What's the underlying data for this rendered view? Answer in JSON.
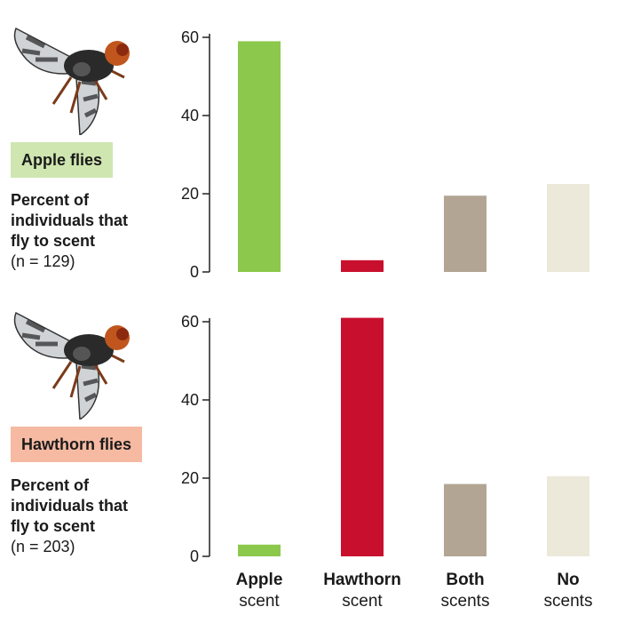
{
  "colors": {
    "apple": "#8cc84b",
    "hawthorn": "#c8102e",
    "both": "#b2a593",
    "none": "#ece8da",
    "apple_badge": "#cfe6b0",
    "hawthorn_badge": "#f6b9a2"
  },
  "categories": [
    {
      "line1": "Apple",
      "line2": "scent"
    },
    {
      "line1": "Hawthorn",
      "line2": "scent"
    },
    {
      "line1": "Both",
      "line2": "scents"
    },
    {
      "line1": "No",
      "line2": "scents"
    }
  ],
  "panels": [
    {
      "badge": "Apple flies",
      "caption_bold": [
        "Percent of",
        "individuals that",
        "fly to scent"
      ],
      "caption_n": "(n = 129)"
    },
    {
      "badge": "Hawthorn flies",
      "caption_bold": [
        "Percent of",
        "individuals that",
        "fly to scent"
      ],
      "caption_n": "(n = 203)"
    }
  ],
  "chart_data": [
    {
      "type": "bar",
      "categories": [
        "Apple scent",
        "Hawthorn scent",
        "Both scents",
        "No scents"
      ],
      "values": [
        59,
        3,
        19.5,
        22.5
      ],
      "ylabel": "Percent of individuals that fly to scent",
      "ylim": [
        0,
        60
      ],
      "yticks": [
        "0",
        "20",
        "40",
        "60"
      ]
    },
    {
      "type": "bar",
      "categories": [
        "Apple scent",
        "Hawthorn scent",
        "Both scents",
        "No scents"
      ],
      "values": [
        3,
        61,
        18.5,
        20.5
      ],
      "ylabel": "Percent of individuals that fly to scent",
      "ylim": [
        0,
        60
      ],
      "yticks": [
        "0",
        "20",
        "40",
        "60"
      ]
    }
  ]
}
